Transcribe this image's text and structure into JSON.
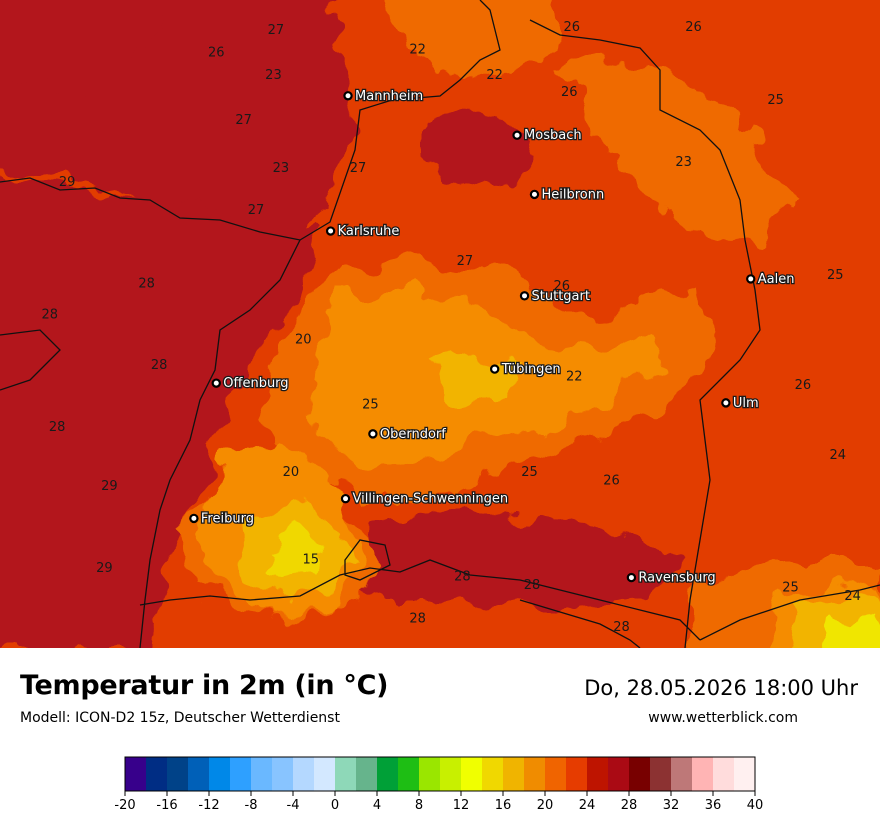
{
  "title": "Temperatur in 2m (in °C)",
  "subtitle": "Modell: ICON-D2 15z, Deutscher Wetterdienst",
  "datetime": "Do, 28.05.2026 18:00 Uhr",
  "website": "www.wetterblick.com",
  "cities": [
    {
      "name": "Mannheim",
      "lon": 8.47,
      "lat": 49.49
    },
    {
      "name": "Mosbach",
      "lon": 9.15,
      "lat": 49.35
    },
    {
      "name": "Heilbronn",
      "lon": 9.22,
      "lat": 49.14
    },
    {
      "name": "Karlsruhe",
      "lon": 8.4,
      "lat": 49.01
    },
    {
      "name": "Aalen",
      "lon": 10.09,
      "lat": 48.84
    },
    {
      "name": "Stuttgart",
      "lon": 9.18,
      "lat": 48.78
    },
    {
      "name": "Tübingen",
      "lon": 9.06,
      "lat": 48.52
    },
    {
      "name": "Offenburg",
      "lon": 7.94,
      "lat": 48.47
    },
    {
      "name": "Ulm",
      "lon": 9.99,
      "lat": 48.4
    },
    {
      "name": "Oberndorf",
      "lon": 8.57,
      "lat": 48.29
    },
    {
      "name": "Villingen-Schwenningen",
      "lon": 8.46,
      "lat": 48.06
    },
    {
      "name": "Freiburg",
      "lon": 7.85,
      "lat": 47.99
    },
    {
      "name": "Ravensburg",
      "lon": 9.61,
      "lat": 47.78
    }
  ],
  "temperature_labels": [
    {
      "value": "27",
      "lon": 8.18,
      "lat": 49.71
    },
    {
      "value": "26",
      "lon": 7.94,
      "lat": 49.63
    },
    {
      "value": "23",
      "lon": 8.17,
      "lat": 49.55
    },
    {
      "value": "22",
      "lon": 8.75,
      "lat": 49.64
    },
    {
      "value": "22",
      "lon": 9.06,
      "lat": 49.55
    },
    {
      "value": "26",
      "lon": 9.37,
      "lat": 49.72
    },
    {
      "value": "26",
      "lon": 9.86,
      "lat": 49.72
    },
    {
      "value": "26",
      "lon": 9.36,
      "lat": 49.49
    },
    {
      "value": "25",
      "lon": 10.19,
      "lat": 49.46
    },
    {
      "value": "27",
      "lon": 8.05,
      "lat": 49.39
    },
    {
      "value": "23",
      "lon": 8.2,
      "lat": 49.22
    },
    {
      "value": "27",
      "lon": 8.51,
      "lat": 49.22
    },
    {
      "value": "29",
      "lon": 7.34,
      "lat": 49.17
    },
    {
      "value": "27",
      "lon": 8.1,
      "lat": 49.07
    },
    {
      "value": "23",
      "lon": 9.82,
      "lat": 49.24
    },
    {
      "value": "27",
      "lon": 8.94,
      "lat": 48.89
    },
    {
      "value": "28",
      "lon": 7.66,
      "lat": 48.81
    },
    {
      "value": "28",
      "lon": 7.27,
      "lat": 48.7
    },
    {
      "value": "26",
      "lon": 9.33,
      "lat": 48.8
    },
    {
      "value": "25",
      "lon": 10.43,
      "lat": 48.84
    },
    {
      "value": "20",
      "lon": 8.29,
      "lat": 48.61
    },
    {
      "value": "28",
      "lon": 7.71,
      "lat": 48.52
    },
    {
      "value": "22",
      "lon": 9.38,
      "lat": 48.48
    },
    {
      "value": "25",
      "lon": 8.56,
      "lat": 48.38
    },
    {
      "value": "26",
      "lon": 10.3,
      "lat": 48.45
    },
    {
      "value": "28",
      "lon": 7.3,
      "lat": 48.3
    },
    {
      "value": "24",
      "lon": 10.44,
      "lat": 48.2
    },
    {
      "value": "20",
      "lon": 8.24,
      "lat": 48.14
    },
    {
      "value": "25",
      "lon": 9.2,
      "lat": 48.14
    },
    {
      "value": "26",
      "lon": 9.53,
      "lat": 48.11
    },
    {
      "value": "29",
      "lon": 7.51,
      "lat": 48.09
    },
    {
      "value": "15",
      "lon": 8.32,
      "lat": 47.83
    },
    {
      "value": "29",
      "lon": 7.49,
      "lat": 47.8
    },
    {
      "value": "28",
      "lon": 8.93,
      "lat": 47.77
    },
    {
      "value": "28",
      "lon": 9.21,
      "lat": 47.74
    },
    {
      "value": "25",
      "lon": 10.25,
      "lat": 47.73
    },
    {
      "value": "24",
      "lon": 10.5,
      "lat": 47.7
    },
    {
      "value": "28",
      "lon": 8.75,
      "lat": 47.62
    },
    {
      "value": "28",
      "lon": 9.57,
      "lat": 47.59
    }
  ],
  "colorbar": {
    "min": -20,
    "max": 40,
    "step": 2,
    "tick_labels": [
      "-20",
      "-16",
      "-12",
      "-8",
      "-4",
      "0",
      "4",
      "8",
      "12",
      "16",
      "20",
      "24",
      "28",
      "32",
      "36",
      "40"
    ],
    "colors": [
      "#37008b",
      "#002d84",
      "#004288",
      "#0060b8",
      "#0088e8",
      "#2ea0ff",
      "#6ab8ff",
      "#88c4ff",
      "#b4d8ff",
      "#d3e8ff",
      "#8ed8b8",
      "#66b48c",
      "#00a037",
      "#1ebe14",
      "#9ae600",
      "#c8f000",
      "#f0ff00",
      "#f0d800",
      "#f0b400",
      "#f08c00",
      "#f06400",
      "#e63c00",
      "#be1400",
      "#aa0a14",
      "#780000",
      "#8c3232",
      "#be7878",
      "#ffb4b4",
      "#ffdcdc",
      "#fff0f0"
    ]
  },
  "palette": {
    "hot": "#b3141b",
    "warm": "#e23c00",
    "mild": "#ef6b00",
    "cool": "#f58c00",
    "cold": "#f2b400",
    "chill": "#f0d800",
    "border": "#111111"
  }
}
